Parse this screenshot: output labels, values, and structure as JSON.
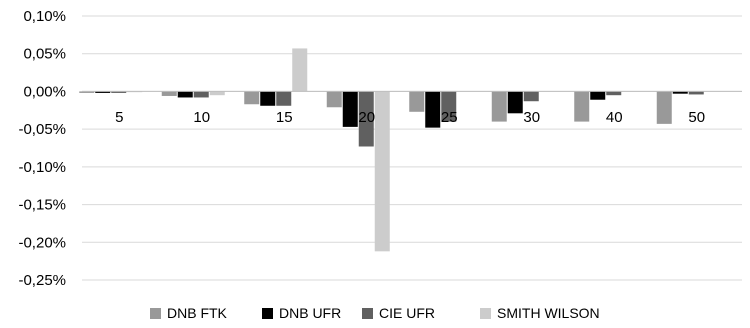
{
  "chart_data": {
    "type": "bar",
    "title": "",
    "xlabel": "",
    "ylabel": "",
    "categories": [
      "5",
      "10",
      "15",
      "20",
      "25",
      "30",
      "40",
      "50"
    ],
    "ylim": [
      -0.25,
      0.1
    ],
    "yticks": [
      0.1,
      0.05,
      0.0,
      -0.05,
      -0.1,
      -0.15,
      -0.2,
      -0.25
    ],
    "ytick_labels": [
      "0,10%",
      "0,05%",
      "0,00%",
      "-0,05%",
      "-0,10%",
      "-0,15%",
      "-0,20%",
      "-0,25%"
    ],
    "grid": true,
    "legend_position": "bottom",
    "series": [
      {
        "name": "DNB FTK",
        "color": "#999999",
        "values": [
          -0.002,
          -0.006,
          -0.017,
          -0.021,
          -0.027,
          -0.04,
          -0.04,
          -0.043
        ]
      },
      {
        "name": "DNB UFR",
        "color": "#000000",
        "values": [
          -0.002,
          -0.008,
          -0.019,
          -0.047,
          -0.048,
          -0.029,
          -0.011,
          -0.003
        ]
      },
      {
        "name": "CIE UFR",
        "color": "#606060",
        "values": [
          -0.002,
          -0.008,
          -0.019,
          -0.073,
          -0.04,
          -0.013,
          -0.005,
          -0.004
        ]
      },
      {
        "name": "SMITH WILSON",
        "color": "#cccccc",
        "values": [
          -0.001,
          -0.005,
          0.057,
          -0.212,
          0.0,
          0.0,
          0.0,
          0.0
        ]
      }
    ]
  }
}
